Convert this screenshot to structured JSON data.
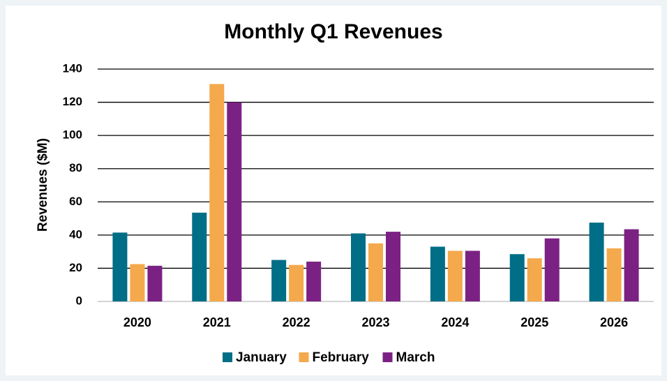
{
  "chart_data": {
    "type": "bar",
    "title": "Monthly Q1 Revenues",
    "y_label": "Revenues ($M)",
    "categories": [
      "2020",
      "2021",
      "2022",
      "2023",
      "2024",
      "2025",
      "2026"
    ],
    "series": [
      {
        "name": "January",
        "color": "#006e87",
        "values": [
          41.5,
          53.5,
          25,
          41,
          33,
          28.5,
          47.5
        ]
      },
      {
        "name": "February",
        "color": "#f4a94c",
        "values": [
          22.5,
          131,
          22,
          35,
          30.5,
          26,
          32
        ]
      },
      {
        "name": "March",
        "color": "#7b2184",
        "values": [
          21.5,
          120,
          24,
          42,
          30.5,
          38,
          43.5
        ]
      }
    ],
    "ylim": [
      0,
      140
    ],
    "yticks": [
      0,
      20,
      40,
      60,
      80,
      100,
      120,
      140
    ],
    "grid": true,
    "legend": "bottom"
  }
}
